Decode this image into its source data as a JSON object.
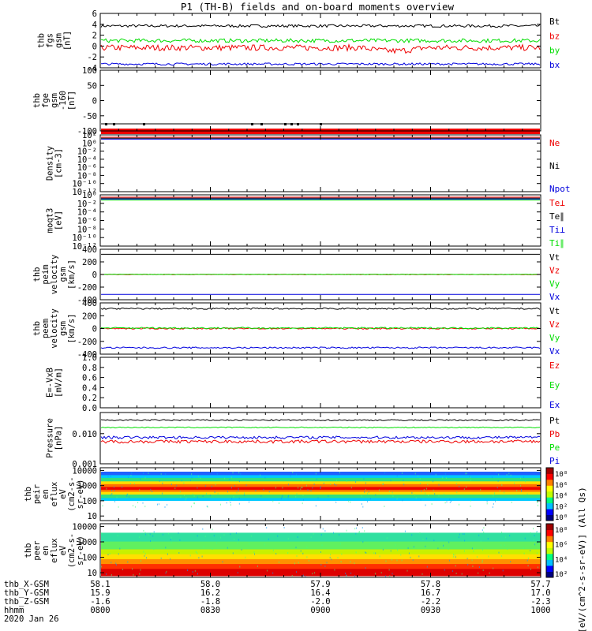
{
  "title": "P1 (TH-B) fields and on-board moments overview",
  "colors": {
    "black": "#000000",
    "red": "#ee0000",
    "green": "#00dd00",
    "blue": "#0000dd"
  },
  "chart_data": [
    {
      "id": "fgs",
      "type": "line",
      "ylabel": [
        "thb",
        "fgs",
        "gsm",
        "[nT]"
      ],
      "ylim": [
        -4,
        6
      ],
      "yticks": [
        "6",
        "4",
        "2",
        "0",
        "-2",
        "-4"
      ],
      "series": [
        {
          "name": "Bt",
          "color": "#000000",
          "base": 3.7,
          "amp": 0.25
        },
        {
          "name": "bz",
          "color": "#ee0000",
          "base": -0.3,
          "amp": 0.55
        },
        {
          "name": "by",
          "color": "#00dd00",
          "base": 1.0,
          "amp": 0.35
        },
        {
          "name": "bx",
          "color": "#0000dd",
          "base": -3.3,
          "amp": 0.2
        }
      ]
    },
    {
      "id": "fge",
      "type": "line",
      "ylabel": [
        "thb",
        "fge",
        "gsm",
        "-160",
        "[nT]"
      ],
      "ylim": [
        -120,
        100
      ],
      "yticks": [
        "100",
        "50",
        "0",
        "-50",
        "-100"
      ],
      "series": [
        {
          "name": "",
          "color": "#000000",
          "base": -110,
          "amp": 0
        }
      ]
    },
    {
      "id": "density",
      "type": "line",
      "ylabel": [
        "Density",
        "[cm-3]"
      ],
      "ylim": [
        -14,
        2
      ],
      "log": true,
      "yticks": [
        "10²",
        "10⁰",
        "10⁻²",
        "10⁻⁴",
        "10⁻⁶",
        "10⁻⁸",
        "10⁻¹⁰",
        "10⁻¹²"
      ],
      "series": [
        {
          "name": "Ne",
          "color": "#ee0000",
          "base": 0.3,
          "amp": 0.02
        },
        {
          "name": "Ni",
          "color": "#000000",
          "base": 0.3,
          "amp": 0.02
        },
        {
          "name": "Npot",
          "color": "#0000dd",
          "base": 0.35,
          "amp": 0.02
        }
      ]
    },
    {
      "id": "moqt3",
      "type": "line",
      "ylabel": [
        "moqt3",
        "[eV]"
      ],
      "ylim": [
        -14,
        2
      ],
      "log": true,
      "yticks": [
        "10⁰",
        "10⁻²",
        "10⁻⁴",
        "10⁻⁶",
        "10⁻⁸",
        "10⁻¹⁰",
        "10⁻¹²"
      ],
      "series": [
        {
          "name": "Te⊥",
          "color": "#ee0000",
          "base": 0.5,
          "amp": 0.01
        },
        {
          "name": "Te∥",
          "color": "#000000",
          "base": 0.5,
          "amp": 0
        },
        {
          "name": "Ti⊥",
          "color": "#0000dd",
          "base": 0.5,
          "amp": 0
        },
        {
          "name": "Ti∥",
          "color": "#00dd00",
          "base": 0.5,
          "amp": 0
        }
      ]
    },
    {
      "id": "peim",
      "type": "line",
      "ylabel": [
        "thb",
        "peim",
        "velocity",
        "gsm",
        "[km/s]"
      ],
      "ylim": [
        -400,
        400
      ],
      "yticks": [
        "400",
        "200",
        "0",
        "-200",
        "-400"
      ],
      "series": [
        {
          "name": "Vt",
          "color": "#000000",
          "base": 320,
          "amp": 0
        },
        {
          "name": "Vz",
          "color": "#ee0000",
          "base": 0,
          "amp": 4
        },
        {
          "name": "Vy",
          "color": "#00dd00",
          "base": 2,
          "amp": 3
        },
        {
          "name": "Vx",
          "color": "#0000dd",
          "base": -315,
          "amp": 0
        }
      ]
    },
    {
      "id": "peem",
      "type": "line",
      "ylabel": [
        "thb",
        "peem",
        "velocity",
        "gsm",
        "[km/s]"
      ],
      "ylim": [
        -400,
        400
      ],
      "yticks": [
        "400",
        "200",
        "0",
        "-200",
        "-400"
      ],
      "series": [
        {
          "name": "Vt",
          "color": "#000000",
          "base": 310,
          "amp": 12
        },
        {
          "name": "Vz",
          "color": "#ee0000",
          "base": 0,
          "amp": 10
        },
        {
          "name": "Vy",
          "color": "#00dd00",
          "base": 8,
          "amp": 12
        },
        {
          "name": "Vx",
          "color": "#0000dd",
          "base": -300,
          "amp": 12
        }
      ]
    },
    {
      "id": "efield",
      "type": "line",
      "ylabel": [
        "E=-VxB",
        "[mV/m]"
      ],
      "ylim": [
        0,
        1
      ],
      "yticks": [
        "1.0",
        "0.8",
        "0.6",
        "0.4",
        "0.2",
        "0.0"
      ],
      "series": [
        {
          "name": "Ez",
          "color": "#ee0000"
        },
        {
          "name": "Ey",
          "color": "#00dd00"
        },
        {
          "name": "Ex",
          "color": "#0000dd"
        }
      ]
    },
    {
      "id": "pressure",
      "type": "line",
      "ylabel": [
        "Pressure",
        "[nPa]"
      ],
      "ylim": [
        -3,
        -1.3
      ],
      "log": true,
      "yticks": [
        "0.010",
        "0.001"
      ],
      "series": [
        {
          "name": "Pt",
          "color": "#000000",
          "base": 0.028,
          "amp": 0.05
        },
        {
          "name": "Pb",
          "color": "#ee0000",
          "base": 0.0055,
          "amp": 0.12
        },
        {
          "name": "Pe",
          "color": "#00dd00",
          "base": 0.016,
          "amp": 0.04
        },
        {
          "name": "Pi",
          "color": "#0000dd",
          "base": 0.0075,
          "amp": 0.1
        }
      ]
    },
    {
      "id": "peir",
      "type": "heatmap",
      "ylabel": [
        "thb",
        "peir",
        "en",
        "eflux",
        "eV",
        "(cm2-s-",
        "sr-eV)"
      ],
      "ylim": [
        5,
        15000
      ],
      "log": true,
      "yticks": [
        "10000",
        "1000",
        "100",
        "10"
      ],
      "colorbar_ticks": [
        "10⁸",
        "10⁶",
        "10⁴",
        "10²",
        "10⁰"
      ]
    },
    {
      "id": "peer",
      "type": "heatmap",
      "ylabel": [
        "thb",
        "peer",
        "en",
        "eflux",
        "eV",
        "(cm2-s-",
        "sr-eV)"
      ],
      "ylim": [
        5,
        15000
      ],
      "log": true,
      "yticks": [
        "10000",
        "1000",
        "100",
        "10"
      ],
      "colorbar_ticks": [
        "10⁸",
        "10⁶",
        "10⁴",
        "10²"
      ]
    }
  ],
  "colorbar_label": "[eV/(cm^2-s-sr-eV)] (All Qs)",
  "xaxis": {
    "row_labels": [
      "thb_X-GSM",
      "thb_Y-GSM",
      "thb_Z-GSM",
      "hhmm",
      "2020 Jan 26"
    ],
    "columns": [
      {
        "x": "58.1",
        "y": "15.9",
        "z": "-1.6",
        "t": "0800"
      },
      {
        "x": "58.0",
        "y": "16.2",
        "z": "-1.8",
        "t": "0830"
      },
      {
        "x": "57.9",
        "y": "16.4",
        "z": "-2.0",
        "t": "0900"
      },
      {
        "x": "57.8",
        "y": "16.7",
        "z": "-2.2",
        "t": "0930"
      },
      {
        "x": "57.7",
        "y": "17.0",
        "z": "-2.3",
        "t": "1000"
      }
    ]
  }
}
